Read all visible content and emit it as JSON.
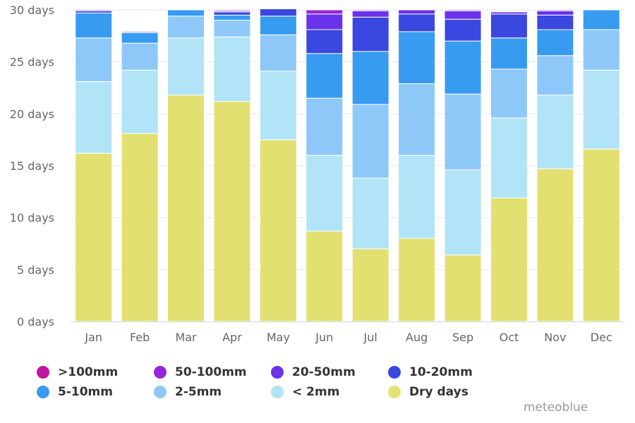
{
  "chart_data": {
    "type": "bar",
    "stacked": true,
    "categories": [
      "Jan",
      "Feb",
      "Mar",
      "Apr",
      "May",
      "Jun",
      "Jul",
      "Aug",
      "Sep",
      "Oct",
      "Nov",
      "Dec"
    ],
    "ylim": [
      0,
      30
    ],
    "y_ticks": [
      {
        "value": 0,
        "label": "0 days"
      },
      {
        "value": 5,
        "label": "5 days"
      },
      {
        "value": 10,
        "label": "10 days"
      },
      {
        "value": 15,
        "label": "15 days"
      },
      {
        "value": 20,
        "label": "20 days"
      },
      {
        "value": 25,
        "label": "25 days"
      },
      {
        "value": 30,
        "label": "30 days"
      }
    ],
    "grid": true,
    "legend_position": "bottom",
    "series": [
      {
        "name": "Dry days",
        "color": "#e2e071",
        "values": [
          16.2,
          18.1,
          21.8,
          21.2,
          17.5,
          8.7,
          7.0,
          8.0,
          6.4,
          11.9,
          14.7,
          16.6
        ]
      },
      {
        "name": "< 2mm",
        "color": "#b0e4f6",
        "values": [
          6.9,
          6.1,
          5.5,
          6.2,
          6.6,
          7.3,
          6.8,
          8.0,
          8.2,
          7.7,
          7.1,
          7.6
        ]
      },
      {
        "name": "2-5mm",
        "color": "#8ec8f9",
        "values": [
          4.2,
          2.6,
          2.1,
          1.6,
          3.5,
          5.5,
          7.1,
          6.9,
          7.3,
          4.7,
          3.8,
          3.9
        ]
      },
      {
        "name": "5-10mm",
        "color": "#379bf0",
        "values": [
          2.4,
          1.0,
          0.6,
          0.5,
          1.8,
          4.3,
          5.1,
          5.0,
          5.1,
          3.0,
          2.5,
          1.9
        ]
      },
      {
        "name": "10-20mm",
        "color": "#3a47e0",
        "values": [
          0.2,
          0.1,
          0.0,
          0.3,
          0.7,
          2.3,
          3.3,
          1.7,
          2.1,
          2.3,
          1.4,
          0.0
        ]
      },
      {
        "name": "20-50mm",
        "color": "#6a32ea",
        "values": [
          0.1,
          0.0,
          0.0,
          0.1,
          0.0,
          1.5,
          0.6,
          0.4,
          0.8,
          0.2,
          0.4,
          0.0
        ]
      },
      {
        "name": "50-100mm",
        "color": "#9626de",
        "values": [
          0.0,
          0.0,
          0.0,
          0.1,
          0.0,
          0.4,
          0.1,
          0.0,
          0.1,
          0.0,
          0.1,
          0.0
        ]
      },
      {
        "name": ">100mm",
        "color": "#c1139d",
        "values": [
          0.0,
          0.0,
          0.0,
          0.0,
          0.0,
          0.0,
          0.0,
          0.0,
          0.0,
          0.0,
          0.0,
          0.0
        ]
      }
    ]
  },
  "legend": [
    {
      "label": ">100mm",
      "color": "#c1139d"
    },
    {
      "label": "50-100mm",
      "color": "#9626de"
    },
    {
      "label": "20-50mm",
      "color": "#6a32ea"
    },
    {
      "label": "10-20mm",
      "color": "#3a47e0"
    },
    {
      "label": "5-10mm",
      "color": "#379bf0"
    },
    {
      "label": "2-5mm",
      "color": "#8ec8f9"
    },
    {
      "label": "< 2mm",
      "color": "#b0e4f6"
    },
    {
      "label": "Dry days",
      "color": "#e2e071"
    }
  ],
  "credit": "meteoblue"
}
